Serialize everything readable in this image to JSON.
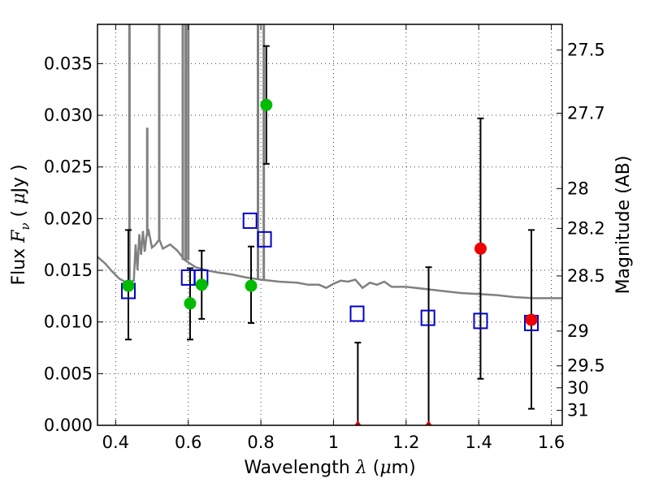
{
  "chart_data": {
    "type": "scatter",
    "xlabel_pre": "Wavelength  ",
    "xlabel_sym": "λ",
    "xlabel_post": " (",
    "xlabel_mu": "μ",
    "xlabel_unit": "m)",
    "ylabel_pre": "Flux  ",
    "ylabel_sym": "F",
    "ylabel_sub": "ν",
    "ylabel_post": "  ( ",
    "ylabel_mu": "μ",
    "ylabel_unit": "Jy )",
    "y2label": "Magnitude (AB)",
    "xlim": [
      0.35,
      1.63
    ],
    "ylim": [
      0.0,
      0.0388
    ],
    "grid": true,
    "x_ticks": [
      {
        "v": 0.4,
        "label": "0.4"
      },
      {
        "v": 0.6,
        "label": "0.6"
      },
      {
        "v": 0.8,
        "label": "0.8"
      },
      {
        "v": 1.0,
        "label": "1"
      },
      {
        "v": 1.2,
        "label": "1.2"
      },
      {
        "v": 1.4,
        "label": "1.4"
      },
      {
        "v": 1.6,
        "label": "1.6"
      }
    ],
    "y_ticks": [
      {
        "v": 0.0,
        "label": "0.000"
      },
      {
        "v": 0.005,
        "label": "0.005"
      },
      {
        "v": 0.01,
        "label": "0.010"
      },
      {
        "v": 0.015,
        "label": "0.015"
      },
      {
        "v": 0.02,
        "label": "0.020"
      },
      {
        "v": 0.025,
        "label": "0.025"
      },
      {
        "v": 0.03,
        "label": "0.030"
      },
      {
        "v": 0.035,
        "label": "0.035"
      }
    ],
    "y2_ticks": [
      {
        "mag": 27.5,
        "label": "27.5"
      },
      {
        "mag": 27.7,
        "label": "27.7"
      },
      {
        "mag": 28,
        "label": "28"
      },
      {
        "mag": 28.2,
        "label": "28.2"
      },
      {
        "mag": 28.5,
        "label": "28.5"
      },
      {
        "mag": 29,
        "label": "29"
      },
      {
        "mag": 29.5,
        "label": "29.5"
      },
      {
        "mag": 30,
        "label": "30"
      },
      {
        "mag": 31,
        "label": "31"
      }
    ],
    "template_spectrum": {
      "color": "#808080",
      "x": [
        0.35,
        0.37,
        0.39,
        0.41,
        0.43,
        0.45,
        0.455,
        0.46,
        0.465,
        0.47,
        0.475,
        0.48,
        0.485,
        0.49,
        0.5,
        0.51,
        0.52,
        0.53,
        0.55,
        0.57,
        0.59,
        0.62,
        0.65,
        0.68,
        0.72,
        0.76,
        0.8,
        0.85,
        0.9,
        0.93,
        0.96,
        0.98,
        1.0,
        1.02,
        1.04,
        1.06,
        1.08,
        1.1,
        1.12,
        1.14,
        1.16,
        1.2,
        1.25,
        1.3,
        1.35,
        1.4,
        1.45,
        1.5,
        1.55,
        1.6,
        1.63
      ],
      "y": [
        0.0163,
        0.0157,
        0.0149,
        0.0142,
        0.0138,
        0.014,
        0.0175,
        0.015,
        0.0185,
        0.0165,
        0.0188,
        0.0168,
        0.0183,
        0.019,
        0.0172,
        0.0175,
        0.018,
        0.0171,
        0.0175,
        0.0169,
        0.016,
        0.0153,
        0.015,
        0.0148,
        0.0146,
        0.0143,
        0.0141,
        0.0139,
        0.0138,
        0.0136,
        0.0136,
        0.0133,
        0.0137,
        0.014,
        0.0139,
        0.0141,
        0.0133,
        0.0138,
        0.0136,
        0.0139,
        0.0134,
        0.0134,
        0.0132,
        0.013,
        0.0128,
        0.0127,
        0.0126,
        0.0124,
        0.0123,
        0.0123,
        0.0123
      ],
      "emission_lines": [
        {
          "x": 0.438,
          "y": 0.0388
        },
        {
          "x": 0.487,
          "y": 0.0288
        },
        {
          "x": 0.52,
          "y": 0.0388
        },
        {
          "x": 0.585,
          "y": 0.0388
        },
        {
          "x": 0.593,
          "y": 0.0388
        },
        {
          "x": 0.6,
          "y": 0.0388
        },
        {
          "x": 0.792,
          "y": 0.0388
        },
        {
          "x": 0.808,
          "y": 0.0388
        }
      ]
    },
    "series": [
      {
        "marker": "open-square",
        "color": "#0000cc",
        "points": [
          {
            "x": 0.435,
            "y": 0.013
          },
          {
            "x": 0.6,
            "y": 0.0143
          },
          {
            "x": 0.635,
            "y": 0.0143
          },
          {
            "x": 0.77,
            "y": 0.0198
          },
          {
            "x": 0.81,
            "y": 0.018
          },
          {
            "x": 1.065,
            "y": 0.0108
          },
          {
            "x": 1.26,
            "y": 0.0104
          },
          {
            "x": 1.405,
            "y": 0.0101
          },
          {
            "x": 1.545,
            "y": 0.0099
          }
        ]
      },
      {
        "marker": "filled-circle",
        "color": "#00bb00",
        "points": [
          {
            "x": 0.435,
            "y": 0.0135,
            "err": [
              0.0083,
              0.0189
            ]
          },
          {
            "x": 0.605,
            "y": 0.0118,
            "err": [
              0.0083,
              0.0152
            ]
          },
          {
            "x": 0.637,
            "y": 0.0136,
            "err": [
              0.0103,
              0.0169
            ]
          },
          {
            "x": 0.773,
            "y": 0.0135,
            "err": [
              0.0099,
              0.0173
            ]
          },
          {
            "x": 0.815,
            "y": 0.031,
            "err": [
              0.0253,
              0.0367
            ]
          }
        ]
      },
      {
        "marker": "filled-circle",
        "color": "#ee0000",
        "points": [
          {
            "x": 1.405,
            "y": 0.0171,
            "err": [
              0.0045,
              0.0297
            ]
          },
          {
            "x": 1.545,
            "y": 0.0102,
            "err": [
              0.0016,
              0.0189
            ]
          }
        ]
      },
      {
        "marker": "small-triangle",
        "color": "#cc0000",
        "points": [
          {
            "x": 1.067,
            "y": 0.0,
            "err": [
              0.0,
              0.008
            ]
          },
          {
            "x": 1.262,
            "y": 0.0,
            "err": [
              0.0,
              0.0153
            ]
          }
        ]
      }
    ]
  }
}
